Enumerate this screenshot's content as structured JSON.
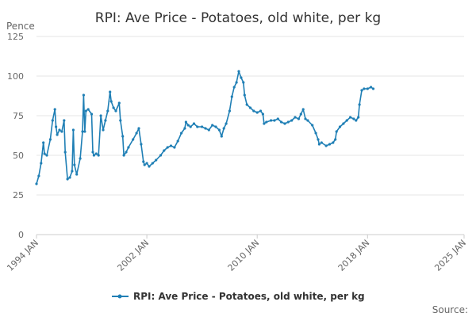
{
  "colors": {
    "series": "#1f7fb5",
    "grid": "#e6e6e6",
    "axis": "#cccccc",
    "text": "#333333",
    "muted": "#666666"
  },
  "legend_icon": "line-with-dot-marker",
  "footer": {
    "source_label": "Source:"
  },
  "chart_data": {
    "type": "line",
    "title": "RPI: Ave Price - Potatoes, old white, per kg",
    "ylabel": "Pence",
    "xlabel": "",
    "ylim": [
      0,
      125
    ],
    "yticks": [
      0,
      25,
      50,
      75,
      100,
      125
    ],
    "xlim": [
      "1994-01",
      "2025-01"
    ],
    "xticks": [
      {
        "date": "1994-01",
        "label": "1994 JAN"
      },
      {
        "date": "2002-01",
        "label": "2002 JAN"
      },
      {
        "date": "2010-01",
        "label": "2010 JAN"
      },
      {
        "date": "2018-01",
        "label": "2018 JAN"
      },
      {
        "date": "2025-01",
        "label": "2025 JAN"
      }
    ],
    "grid": "horizontal",
    "legend_position": "bottom-center",
    "series": [
      {
        "name": "RPI: Ave Price - Potatoes, old white, per kg",
        "points": [
          [
            "1994-01",
            32
          ],
          [
            "1994-03",
            37
          ],
          [
            "1994-05",
            45
          ],
          [
            "1994-07",
            58
          ],
          [
            "1994-08",
            51
          ],
          [
            "1994-10",
            50
          ],
          [
            "1995-01",
            60
          ],
          [
            "1995-03",
            72
          ],
          [
            "1995-05",
            79
          ],
          [
            "1995-06",
            68
          ],
          [
            "1995-07",
            63
          ],
          [
            "1995-09",
            66
          ],
          [
            "1995-11",
            65
          ],
          [
            "1996-01",
            72
          ],
          [
            "1996-02",
            52
          ],
          [
            "1996-04",
            35
          ],
          [
            "1996-06",
            36
          ],
          [
            "1996-08",
            40
          ],
          [
            "1996-09",
            66
          ],
          [
            "1996-10",
            44
          ],
          [
            "1996-12",
            38
          ],
          [
            "1997-03",
            48
          ],
          [
            "1997-05",
            65
          ],
          [
            "1997-06",
            88
          ],
          [
            "1997-07",
            65
          ],
          [
            "1997-08",
            78
          ],
          [
            "1997-10",
            79
          ],
          [
            "1998-01",
            76
          ],
          [
            "1998-02",
            52
          ],
          [
            "1998-03",
            50
          ],
          [
            "1998-05",
            51
          ],
          [
            "1998-07",
            50
          ],
          [
            "1998-09",
            75
          ],
          [
            "1998-11",
            66
          ],
          [
            "1999-01",
            72
          ],
          [
            "1999-03",
            78
          ],
          [
            "1999-05",
            90
          ],
          [
            "1999-06",
            84
          ],
          [
            "1999-08",
            80
          ],
          [
            "1999-10",
            78
          ],
          [
            "2000-01",
            83
          ],
          [
            "2000-02",
            72
          ],
          [
            "2000-04",
            62
          ],
          [
            "2000-05",
            50
          ],
          [
            "2000-07",
            52
          ],
          [
            "2000-09",
            55
          ],
          [
            "2001-01",
            60
          ],
          [
            "2001-04",
            64
          ],
          [
            "2001-06",
            67
          ],
          [
            "2001-08",
            57
          ],
          [
            "2001-10",
            46
          ],
          [
            "2001-11",
            44
          ],
          [
            "2002-01",
            45
          ],
          [
            "2002-03",
            43
          ],
          [
            "2002-06",
            45
          ],
          [
            "2002-09",
            47
          ],
          [
            "2003-01",
            50
          ],
          [
            "2003-04",
            53
          ],
          [
            "2003-07",
            55
          ],
          [
            "2003-10",
            56
          ],
          [
            "2004-01",
            55
          ],
          [
            "2004-04",
            59
          ],
          [
            "2004-07",
            64
          ],
          [
            "2004-10",
            67
          ],
          [
            "2004-11",
            71
          ],
          [
            "2005-01",
            69
          ],
          [
            "2005-03",
            68
          ],
          [
            "2005-06",
            70
          ],
          [
            "2005-09",
            68
          ],
          [
            "2006-01",
            68
          ],
          [
            "2006-04",
            67
          ],
          [
            "2006-07",
            66
          ],
          [
            "2006-10",
            69
          ],
          [
            "2007-01",
            68
          ],
          [
            "2007-04",
            66
          ],
          [
            "2007-06",
            62
          ],
          [
            "2007-08",
            67
          ],
          [
            "2007-10",
            70
          ],
          [
            "2008-01",
            78
          ],
          [
            "2008-03",
            87
          ],
          [
            "2008-05",
            93
          ],
          [
            "2008-07",
            96
          ],
          [
            "2008-09",
            103
          ],
          [
            "2008-11",
            99
          ],
          [
            "2009-01",
            96
          ],
          [
            "2009-02",
            88
          ],
          [
            "2009-04",
            82
          ],
          [
            "2009-07",
            80
          ],
          [
            "2009-10",
            78
          ],
          [
            "2010-01",
            77
          ],
          [
            "2010-04",
            78
          ],
          [
            "2010-06",
            76
          ],
          [
            "2010-07",
            70
          ],
          [
            "2010-09",
            71
          ],
          [
            "2011-01",
            72
          ],
          [
            "2011-04",
            72
          ],
          [
            "2011-07",
            73
          ],
          [
            "2011-10",
            71
          ],
          [
            "2012-01",
            70
          ],
          [
            "2012-04",
            71
          ],
          [
            "2012-07",
            72
          ],
          [
            "2012-10",
            74
          ],
          [
            "2013-01",
            73
          ],
          [
            "2013-03",
            76
          ],
          [
            "2013-05",
            79
          ],
          [
            "2013-07",
            73
          ],
          [
            "2013-09",
            72
          ],
          [
            "2014-01",
            69
          ],
          [
            "2014-04",
            64
          ],
          [
            "2014-06",
            60
          ],
          [
            "2014-07",
            57
          ],
          [
            "2014-09",
            58
          ],
          [
            "2015-01",
            56
          ],
          [
            "2015-04",
            57
          ],
          [
            "2015-07",
            58
          ],
          [
            "2015-09",
            60
          ],
          [
            "2015-10",
            65
          ],
          [
            "2016-01",
            68
          ],
          [
            "2016-04",
            70
          ],
          [
            "2016-07",
            72
          ],
          [
            "2016-10",
            74
          ],
          [
            "2017-01",
            73
          ],
          [
            "2017-03",
            72
          ],
          [
            "2017-05",
            74
          ],
          [
            "2017-06",
            82
          ],
          [
            "2017-08",
            91
          ],
          [
            "2017-10",
            92
          ],
          [
            "2018-01",
            92
          ],
          [
            "2018-04",
            93
          ],
          [
            "2018-06",
            92
          ]
        ]
      }
    ]
  }
}
